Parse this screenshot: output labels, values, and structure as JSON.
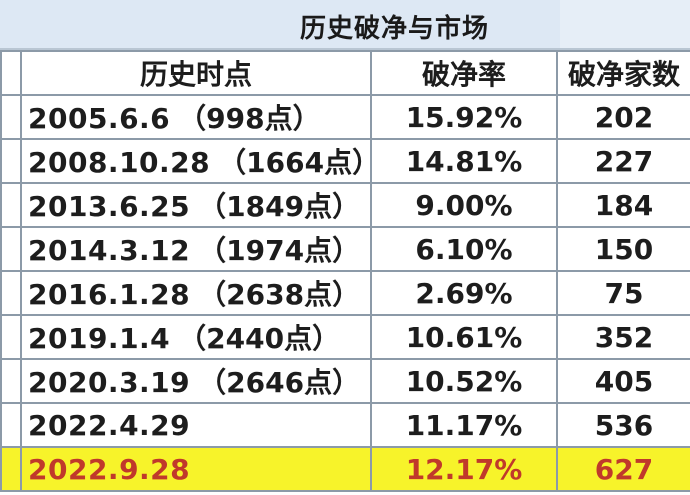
{
  "title": "历史破净与市场",
  "headers": {
    "time": "历史时点",
    "pb_ratio": "破净率",
    "pb_count": "破净家数"
  },
  "rows": [
    {
      "date": "2005.6.6",
      "index_point": "（998点）",
      "pb_ratio": "15.92%",
      "pb_count": "202"
    },
    {
      "date": "2008.10.28",
      "index_point": "（1664点）",
      "pb_ratio": "14.81%",
      "pb_count": "227"
    },
    {
      "date": "2013.6.25",
      "index_point": "（1849点）",
      "pb_ratio": "9.00%",
      "pb_count": "184"
    },
    {
      "date": "2014.3.12",
      "index_point": "（1974点）",
      "pb_ratio": "6.10%",
      "pb_count": "150"
    },
    {
      "date": "2016.1.28",
      "index_point": "（2638点）",
      "pb_ratio": "2.69%",
      "pb_count": "75"
    },
    {
      "date": "2019.1.4",
      "index_point": "（2440点）",
      "pb_ratio": "10.61%",
      "pb_count": "352"
    },
    {
      "date": "2020.3.19",
      "index_point": "（2646点）",
      "pb_ratio": "10.52%",
      "pb_count": "405"
    },
    {
      "date": "2022.4.29",
      "index_point": "",
      "pb_ratio": "11.17%",
      "pb_count": "536"
    },
    {
      "date": "2022.9.28",
      "index_point": "",
      "pb_ratio": "12.17%",
      "pb_count": "627"
    }
  ],
  "colors": {
    "highlight_row_bg": "#f7f32a",
    "highlight_row_text": "#c0392b",
    "header_bg": "#dde8f4"
  }
}
